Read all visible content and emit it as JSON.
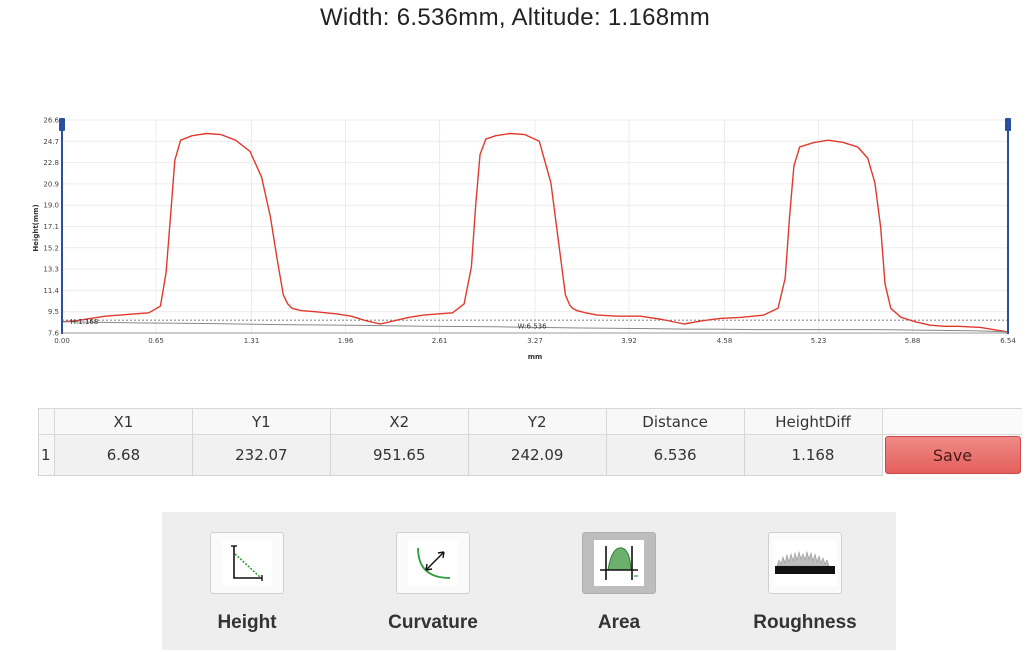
{
  "header": {
    "title": "Width: 6.536mm, Altitude: 1.168mm"
  },
  "chart_data": {
    "type": "line",
    "ylabel": "Height(mm)",
    "xlabel": "mm",
    "xlim": [
      0,
      6.54
    ],
    "ylim": [
      7.6,
      26.6
    ],
    "x_ticks": [
      "0.00",
      "0.65",
      "1.31",
      "1.96",
      "2.61",
      "3.27",
      "3.92",
      "4.58",
      "5.23",
      "5.88",
      "6.54"
    ],
    "y_ticks": [
      "7.6",
      "9.5",
      "11.4",
      "13.3",
      "15.2",
      "17.1",
      "19.0",
      "20.9",
      "22.8",
      "24.7",
      "26.6"
    ],
    "grid": true,
    "series": [
      {
        "color": "#e03a2e",
        "x": [
          0.0,
          0.1,
          0.2,
          0.3,
          0.4,
          0.5,
          0.6,
          0.68,
          0.72,
          0.75,
          0.78,
          0.82,
          0.9,
          1.0,
          1.1,
          1.2,
          1.3,
          1.38,
          1.44,
          1.49,
          1.53,
          1.56,
          1.59,
          1.65,
          1.75,
          1.9,
          2.0,
          2.1,
          2.2,
          2.3,
          2.4,
          2.5,
          2.6,
          2.7,
          2.78,
          2.83,
          2.86,
          2.89,
          2.93,
          3.0,
          3.1,
          3.2,
          3.3,
          3.38,
          3.44,
          3.48,
          3.51,
          3.53,
          3.56,
          3.62,
          3.7,
          3.85,
          4.0,
          4.15,
          4.3,
          4.43,
          4.55,
          4.7,
          4.85,
          4.95,
          5.0,
          5.03,
          5.06,
          5.1,
          5.2,
          5.3,
          5.4,
          5.5,
          5.57,
          5.62,
          5.66,
          5.69,
          5.73,
          5.8,
          5.9,
          6.0,
          6.1,
          6.2,
          6.35,
          6.54
        ],
        "y": [
          8.6,
          8.7,
          8.9,
          9.1,
          9.2,
          9.3,
          9.4,
          10.0,
          13.0,
          18.0,
          23.0,
          24.8,
          25.2,
          25.4,
          25.3,
          24.8,
          23.8,
          21.5,
          18.0,
          14.0,
          11.0,
          10.2,
          9.8,
          9.6,
          9.5,
          9.3,
          9.1,
          8.7,
          8.4,
          8.7,
          9.0,
          9.2,
          9.3,
          9.4,
          10.2,
          13.5,
          19.0,
          23.5,
          24.9,
          25.2,
          25.4,
          25.3,
          24.7,
          21.0,
          15.0,
          11.0,
          10.1,
          9.8,
          9.6,
          9.4,
          9.2,
          9.1,
          9.1,
          8.8,
          8.4,
          8.7,
          8.9,
          9.0,
          9.2,
          9.8,
          12.5,
          18.0,
          22.5,
          24.2,
          24.6,
          24.8,
          24.6,
          24.2,
          23.2,
          21.0,
          17.0,
          12.0,
          9.8,
          9.0,
          8.6,
          8.3,
          8.2,
          8.2,
          8.1,
          7.7
        ]
      },
      {
        "color": "#888888",
        "x": [
          0.0,
          0.5,
          1.0,
          1.5,
          2.0,
          2.5,
          3.0,
          3.27,
          3.6,
          4.0,
          4.3,
          4.5,
          4.8,
          5.2,
          5.6,
          6.0,
          6.3,
          6.54
        ],
        "y": [
          8.6,
          8.5,
          8.45,
          8.35,
          8.3,
          8.2,
          8.15,
          8.1,
          8.05,
          8.0,
          7.95,
          7.95,
          7.9,
          7.9,
          7.9,
          7.85,
          7.8,
          7.7
        ]
      }
    ],
    "reference_level": 8.75,
    "annotations": [
      {
        "text": "H:1.168",
        "x": 0.06,
        "y": 8.4
      },
      {
        "text": "W:6.536",
        "x": 3.15,
        "y": 8.0
      }
    ]
  },
  "table": {
    "headers": [
      "X1",
      "Y1",
      "X2",
      "Y2",
      "Distance",
      "HeightDiff"
    ],
    "rows": [
      {
        "index": "1",
        "cells": [
          "6.68",
          "232.07",
          "951.65",
          "242.09",
          "6.536",
          "1.168"
        ]
      }
    ],
    "save_label": "Save",
    "save_color": "#e4605d"
  },
  "toolbar": {
    "active": "Area",
    "tools": [
      {
        "label": "Height",
        "icon": "height-icon"
      },
      {
        "label": "Curvature",
        "icon": "curvature-icon"
      },
      {
        "label": "Area",
        "icon": "area-icon"
      },
      {
        "label": "Roughness",
        "icon": "roughness-icon"
      }
    ]
  }
}
